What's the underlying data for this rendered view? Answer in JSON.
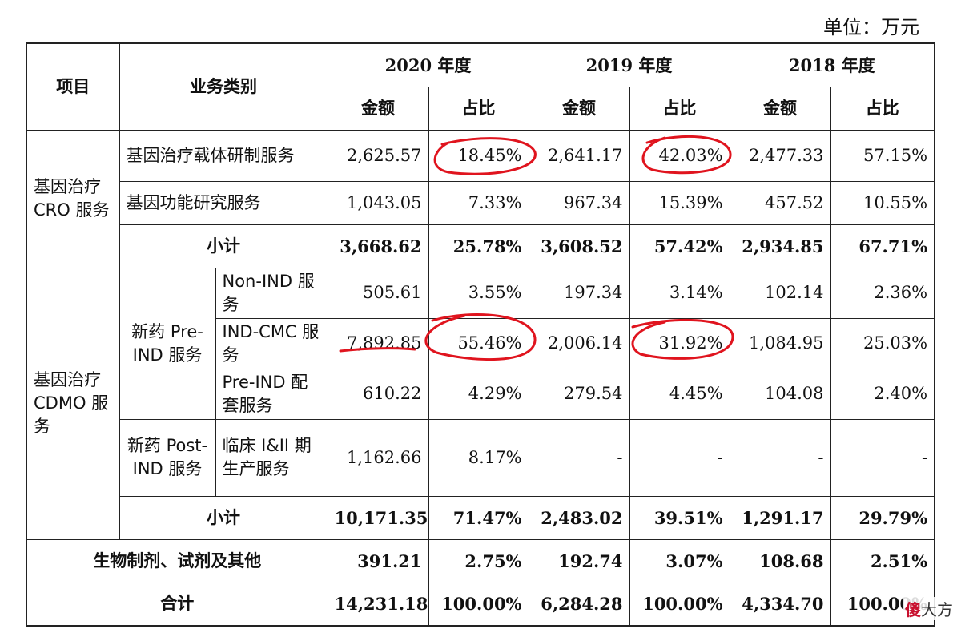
{
  "unit_label": "单位：万元",
  "header": {
    "item": "项目",
    "category": "业务类别",
    "years": [
      "2020 年度",
      "2019 年度",
      "2018 年度"
    ],
    "amount": "金额",
    "ratio": "占比"
  },
  "cro": {
    "group": "基因治疗 CRO 服务",
    "rows": [
      {
        "name": "基因治疗载体研制服务",
        "v": [
          "2,625.57",
          "18.45%",
          "2,641.17",
          "42.03%",
          "2,477.33",
          "57.15%"
        ]
      },
      {
        "name": "基因功能研究服务",
        "v": [
          "1,043.05",
          "7.33%",
          "967.34",
          "15.39%",
          "457.52",
          "10.55%"
        ]
      }
    ],
    "subtotal": {
      "name": "小计",
      "v": [
        "3,668.62",
        "25.78%",
        "3,608.52",
        "57.42%",
        "2,934.85",
        "67.71%"
      ]
    }
  },
  "cdmo": {
    "group": "基因治疗 CDMO 服务",
    "pre_ind": "新药 Pre-IND 服务",
    "post_ind": "新药 Post-IND 服务",
    "rows": [
      {
        "name": "Non-IND 服务",
        "v": [
          "505.61",
          "3.55%",
          "197.34",
          "3.14%",
          "102.14",
          "2.36%"
        ]
      },
      {
        "name": "IND-CMC 服务",
        "v": [
          "7,892.85",
          "55.46%",
          "2,006.14",
          "31.92%",
          "1,084.95",
          "25.03%"
        ]
      },
      {
        "name": "Pre-IND 配套服务",
        "v": [
          "610.22",
          "4.29%",
          "279.54",
          "4.45%",
          "104.08",
          "2.40%"
        ]
      },
      {
        "name": "临床 I&II 期生产服务",
        "v": [
          "1,162.66",
          "8.17%",
          "-",
          "-",
          "-",
          "-"
        ]
      }
    ],
    "subtotal": {
      "name": "小计",
      "v": [
        "10,171.35",
        "71.47%",
        "2,483.02",
        "39.51%",
        "1,291.17",
        "29.79%"
      ]
    }
  },
  "other": {
    "name": "生物制剂、试剂及其他",
    "v": [
      "391.21",
      "2.75%",
      "192.74",
      "3.07%",
      "108.68",
      "2.51%"
    ]
  },
  "total": {
    "name": "合计",
    "v": [
      "14,231.18",
      "100.00%",
      "6,284.28",
      "100.00%",
      "4,334.70",
      "100.00%"
    ]
  },
  "annotation_color": "#e0141e",
  "watermark": {
    "logo": "傻",
    "text": "大方"
  }
}
